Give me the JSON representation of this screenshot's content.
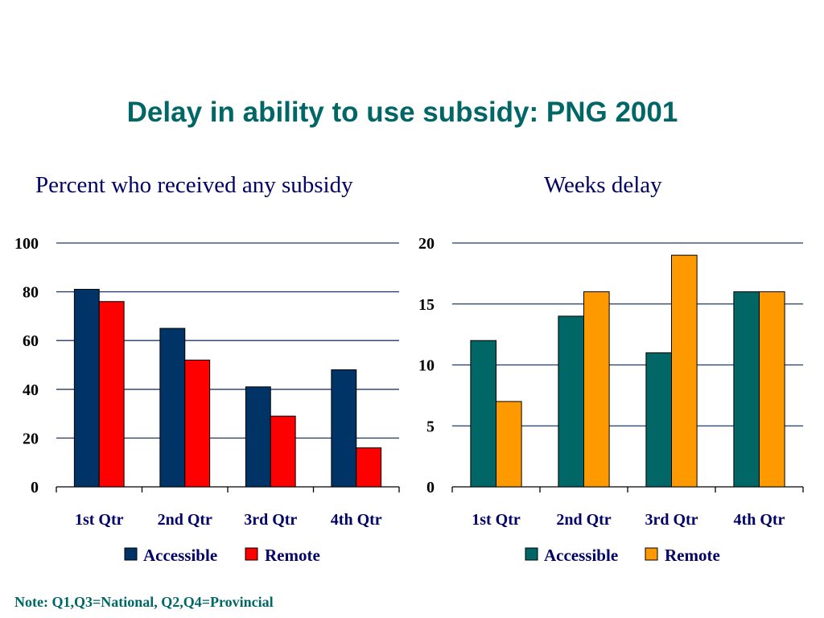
{
  "title": "Delay in ability to use subsidy: PNG 2001",
  "note": "Note: Q1,Q3=National, Q2,Q4=Provincial",
  "chart_data": [
    {
      "type": "bar",
      "title": "Percent who received any subsidy",
      "categories": [
        "1st Qtr",
        "2nd Qtr",
        "3rd Qtr",
        "4th Qtr"
      ],
      "series": [
        {
          "name": "Accessible",
          "color": "#003366",
          "values": [
            81,
            65,
            41,
            48
          ]
        },
        {
          "name": "Remote",
          "color": "#ff0000",
          "values": [
            76,
            52,
            29,
            16
          ]
        }
      ],
      "ylim": [
        0,
        100
      ],
      "yticks": [
        0,
        20,
        40,
        60,
        80,
        100
      ],
      "grid": true,
      "legend": "bottom"
    },
    {
      "type": "bar",
      "title": "Weeks delay",
      "categories": [
        "1st Qtr",
        "2nd Qtr",
        "3rd Qtr",
        "4th Qtr"
      ],
      "series": [
        {
          "name": "Accessible",
          "color": "#006666",
          "values": [
            12,
            14,
            11,
            16
          ]
        },
        {
          "name": "Remote",
          "color": "#ff9900",
          "values": [
            7,
            16,
            19,
            16
          ]
        }
      ],
      "ylim": [
        0,
        20
      ],
      "yticks": [
        0,
        5,
        10,
        15,
        20
      ],
      "grid": true,
      "legend": "bottom"
    }
  ]
}
